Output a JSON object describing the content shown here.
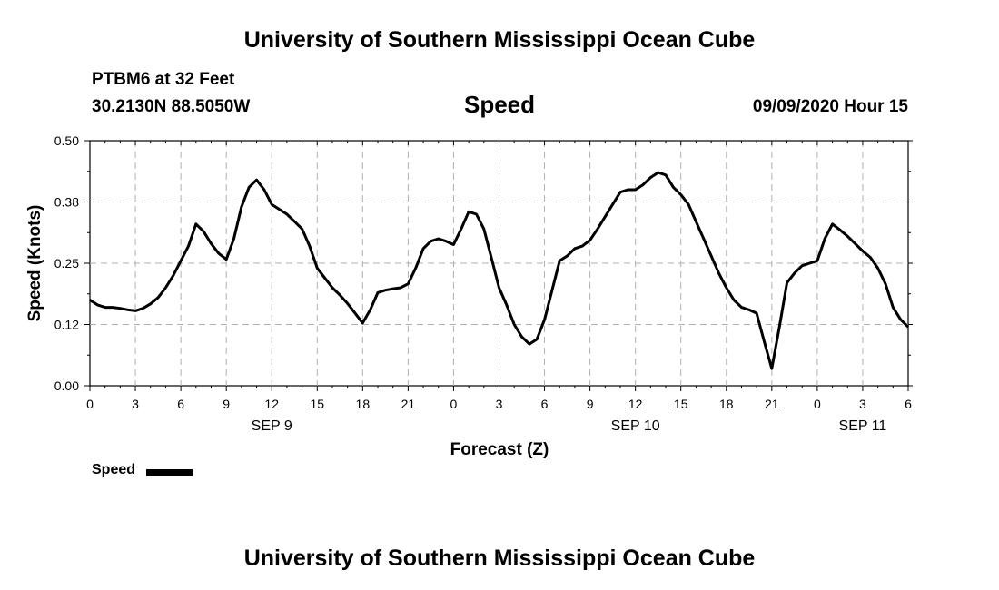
{
  "header": {
    "top_title": "University of Southern Mississippi Ocean Cube",
    "station": "PTBM6 at 32 Feet",
    "location": "30.2130N 88.5050W",
    "subtitle": "Speed",
    "datetime": "09/09/2020 Hour 15",
    "bottom_title": "University of Southern Mississippi Ocean Cube"
  },
  "legend": {
    "label": "Speed"
  },
  "colors": {
    "line": "#000000",
    "grid": "#b0b0b0",
    "background": "#ffffff"
  },
  "chart_data": {
    "type": "line",
    "title": "Speed",
    "xlabel": "Forecast (Z)",
    "ylabel": "Speed (Knots)",
    "xlim": [
      0,
      54
    ],
    "ylim": [
      0,
      0.5
    ],
    "grid": true,
    "legend_position": "bottom-left",
    "x_ticks": [
      0,
      3,
      6,
      9,
      12,
      15,
      18,
      21,
      24,
      27,
      30,
      33,
      36,
      39,
      42,
      45,
      48,
      51,
      54
    ],
    "x_tick_labels": [
      "0",
      "3",
      "6",
      "9",
      "12",
      "15",
      "18",
      "21",
      "0",
      "3",
      "6",
      "9",
      "12",
      "15",
      "18",
      "21",
      "0",
      "3",
      "6"
    ],
    "y_ticks": [
      0,
      0.125,
      0.25,
      0.375,
      0.5
    ],
    "y_tick_labels": [
      "0.00",
      "0.12",
      "0.25",
      "0.38",
      "0.50"
    ],
    "date_labels": [
      {
        "x": 12,
        "text": "SEP 9"
      },
      {
        "x": 36,
        "text": "SEP 10"
      },
      {
        "x": 51,
        "text": "SEP 11"
      }
    ],
    "series": [
      {
        "name": "Speed",
        "x": [
          0,
          0.5,
          1,
          1.5,
          2,
          2.5,
          3,
          3.5,
          4,
          4.5,
          5,
          5.5,
          6,
          6.5,
          7,
          7.5,
          8,
          8.5,
          9,
          9.5,
          10,
          10.5,
          11,
          11.5,
          12,
          12.5,
          13,
          13.5,
          14,
          14.5,
          15,
          15.5,
          16,
          16.5,
          17,
          17.5,
          18,
          18.5,
          19,
          19.5,
          20,
          20.5,
          21,
          21.5,
          22,
          22.5,
          23,
          23.5,
          24,
          24.5,
          25,
          25.5,
          26,
          26.5,
          27,
          27.5,
          28,
          28.5,
          29,
          29.5,
          30,
          30.5,
          31,
          31.5,
          32,
          32.5,
          33,
          33.5,
          34,
          34.5,
          35,
          35.5,
          36,
          36.5,
          37,
          37.5,
          38,
          38.5,
          39,
          39.5,
          40,
          40.5,
          41,
          41.5,
          42,
          42.5,
          43,
          43.5,
          44,
          44.5,
          45,
          45.5,
          46,
          46.5,
          47,
          47.5,
          48,
          48.5,
          49,
          49.5,
          50,
          50.5,
          51,
          51.5,
          52,
          52.5,
          53,
          53.5,
          54
        ],
        "y": [
          0.175,
          0.165,
          0.16,
          0.16,
          0.158,
          0.155,
          0.153,
          0.158,
          0.167,
          0.18,
          0.2,
          0.225,
          0.255,
          0.285,
          0.33,
          0.315,
          0.29,
          0.27,
          0.258,
          0.3,
          0.365,
          0.405,
          0.42,
          0.4,
          0.37,
          0.36,
          0.35,
          0.335,
          0.32,
          0.285,
          0.24,
          0.22,
          0.2,
          0.185,
          0.168,
          0.148,
          0.128,
          0.155,
          0.19,
          0.195,
          0.198,
          0.2,
          0.208,
          0.24,
          0.28,
          0.295,
          0.3,
          0.295,
          0.288,
          0.32,
          0.355,
          0.35,
          0.32,
          0.26,
          0.2,
          0.165,
          0.125,
          0.1,
          0.085,
          0.095,
          0.135,
          0.195,
          0.255,
          0.265,
          0.28,
          0.285,
          0.297,
          0.32,
          0.345,
          0.37,
          0.395,
          0.4,
          0.4,
          0.41,
          0.425,
          0.435,
          0.43,
          0.405,
          0.39,
          0.37,
          0.335,
          0.3,
          0.265,
          0.23,
          0.2,
          0.175,
          0.16,
          0.155,
          0.148,
          0.09,
          0.035,
          0.12,
          0.21,
          0.23,
          0.245,
          0.25,
          0.255,
          0.3,
          0.33,
          0.318,
          0.305,
          0.29,
          0.275,
          0.262,
          0.24,
          0.208,
          0.16,
          0.135,
          0.12
        ]
      }
    ]
  }
}
